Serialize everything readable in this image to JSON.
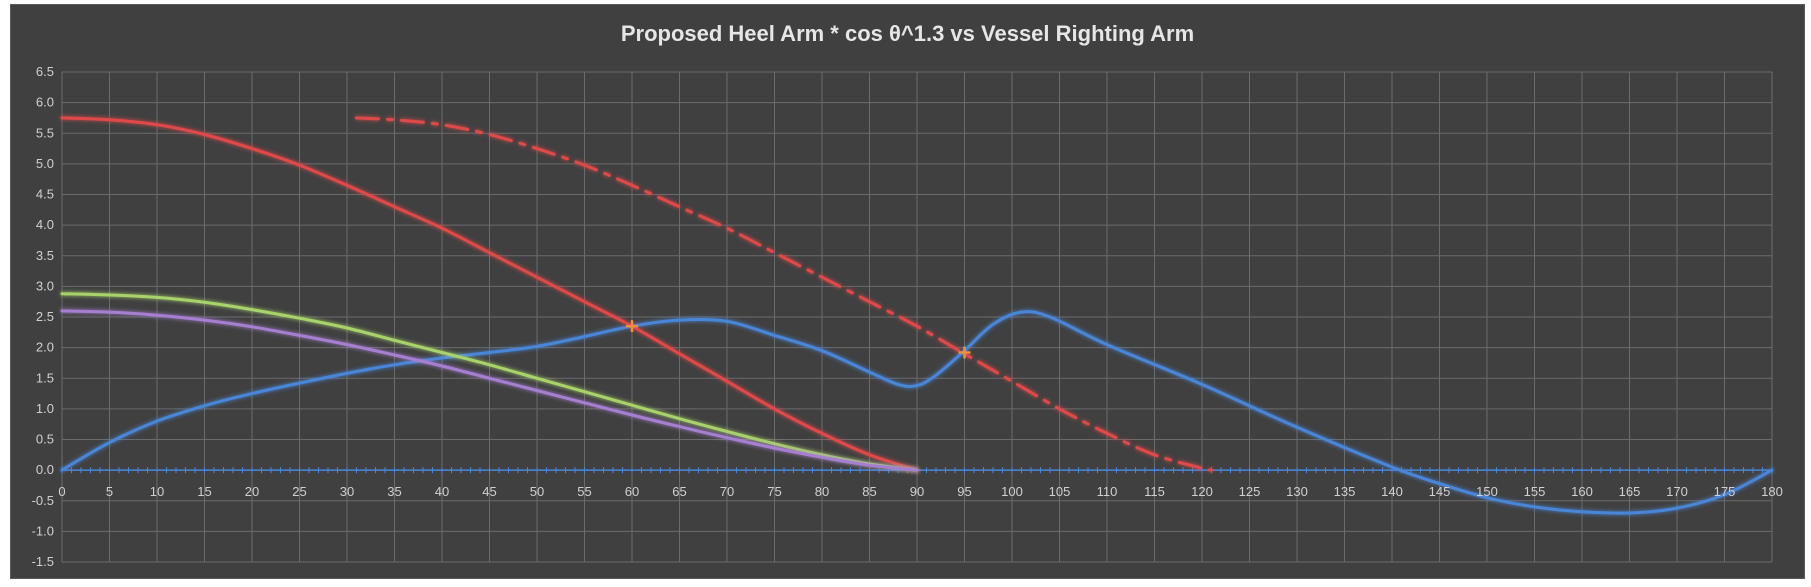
{
  "colors": {
    "background": "#404040",
    "grid": "#6b6b6b",
    "text": "#d9d9d9",
    "red": "#e04a4a",
    "green": "#a8d26a",
    "purple": "#a67fd0",
    "blue": "#4a86d8",
    "marker": "#f0903a"
  },
  "chart_data": {
    "type": "line",
    "title": "Proposed Heel Arm * cos θ^1.3 vs Vessel Righting Arm",
    "xlabel": "",
    "ylabel": "",
    "xlim": [
      0,
      180
    ],
    "ylim": [
      -1.5,
      6.5
    ],
    "x_ticks": [
      0,
      5,
      10,
      15,
      20,
      25,
      30,
      35,
      40,
      45,
      50,
      55,
      60,
      65,
      70,
      75,
      80,
      85,
      90,
      95,
      100,
      105,
      110,
      115,
      120,
      125,
      130,
      135,
      140,
      145,
      150,
      155,
      160,
      165,
      170,
      175,
      180
    ],
    "y_ticks": [
      6.5,
      6.0,
      5.5,
      5.0,
      4.5,
      4.0,
      3.5,
      3.0,
      2.5,
      2.0,
      1.5,
      1.0,
      0.5,
      0.0,
      -0.5,
      -1.0,
      -1.5
    ],
    "y_tick_labels": [
      "6.5",
      "6.0",
      "5.5",
      "5.0",
      "4.5",
      "4.0",
      "3.5",
      "3.0",
      "2.5",
      "2.0",
      "1.5",
      "1.0",
      "0.5",
      "0.0",
      "-0.5",
      "-1.0",
      "-1.5"
    ],
    "grid": true,
    "legend": "none",
    "series": [
      {
        "color_key": "blue",
        "style": "solid",
        "x": [
          0,
          5,
          10,
          15,
          20,
          25,
          30,
          35,
          40,
          45,
          50,
          55,
          60,
          65,
          70,
          75,
          80,
          85,
          88,
          90,
          92,
          95,
          98,
          101,
          104,
          110,
          120,
          130,
          140,
          145,
          150,
          155,
          160,
          165,
          170,
          175,
          180
        ],
        "y": [
          0,
          0.45,
          0.8,
          1.05,
          1.25,
          1.42,
          1.58,
          1.72,
          1.83,
          1.92,
          2.02,
          2.18,
          2.35,
          2.45,
          2.43,
          2.2,
          1.95,
          1.6,
          1.4,
          1.38,
          1.55,
          1.95,
          2.38,
          2.58,
          2.5,
          2.05,
          1.4,
          0.7,
          0.05,
          -0.22,
          -0.45,
          -0.6,
          -0.68,
          -0.7,
          -0.62,
          -0.4,
          0
        ]
      },
      {
        "color_key": "red",
        "style": "solid",
        "x": [
          0,
          5,
          10,
          15,
          20,
          25,
          30,
          35,
          40,
          45,
          50,
          55,
          60,
          65,
          70,
          75,
          80,
          85,
          90
        ],
        "y": [
          5.75,
          5.72,
          5.64,
          5.48,
          5.25,
          4.98,
          4.65,
          4.3,
          3.95,
          3.55,
          3.15,
          2.75,
          2.35,
          1.9,
          1.45,
          1.0,
          0.6,
          0.25,
          0.0
        ]
      },
      {
        "color_key": "red",
        "style": "dashdot",
        "x": [
          31,
          35,
          40,
          45,
          50,
          55,
          60,
          65,
          70,
          75,
          80,
          85,
          90,
          95,
          100,
          105,
          110,
          115,
          120,
          121
        ],
        "y": [
          5.75,
          5.72,
          5.64,
          5.48,
          5.25,
          4.98,
          4.65,
          4.3,
          3.95,
          3.55,
          3.15,
          2.75,
          2.35,
          1.9,
          1.45,
          1.0,
          0.6,
          0.25,
          0.03,
          0.0
        ]
      },
      {
        "color_key": "green",
        "style": "solid",
        "x": [
          0,
          5,
          10,
          15,
          20,
          25,
          30,
          35,
          40,
          45,
          50,
          55,
          60,
          65,
          70,
          75,
          80,
          85,
          90
        ],
        "y": [
          2.88,
          2.86,
          2.82,
          2.74,
          2.62,
          2.48,
          2.32,
          2.12,
          1.92,
          1.72,
          1.5,
          1.28,
          1.06,
          0.84,
          0.63,
          0.43,
          0.25,
          0.1,
          0.0
        ]
      },
      {
        "color_key": "purple",
        "style": "solid",
        "x": [
          0,
          5,
          10,
          15,
          20,
          25,
          30,
          35,
          40,
          45,
          50,
          55,
          60,
          65,
          70,
          75,
          80,
          85,
          90
        ],
        "y": [
          2.6,
          2.58,
          2.53,
          2.45,
          2.34,
          2.2,
          2.05,
          1.88,
          1.7,
          1.5,
          1.3,
          1.1,
          0.9,
          0.71,
          0.53,
          0.36,
          0.21,
          0.08,
          0.0
        ]
      }
    ],
    "markers": [
      {
        "x": 60,
        "y": 2.35
      },
      {
        "x": 95,
        "y": 1.92
      }
    ]
  }
}
